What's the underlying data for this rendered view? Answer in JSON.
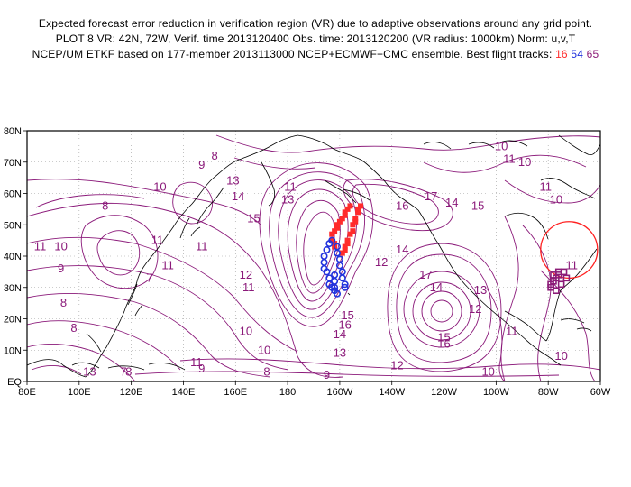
{
  "header": {
    "line1": "Expected forecast error reduction in verification region (VR) due to adaptive observations around any grid point.",
    "line2": "PLOT 8 VR: 42N, 72W, Verif. time 2013120400 Obs. time: 2013120200 (VR radius: 1000km) Norm: u,v,T",
    "line3_prefix": "NCEP/UM ETKF based on 177-member 2013113000 NCEP+ECMWF+CMC ensemble. Best flight tracks:",
    "track_a": "16",
    "track_b": "54",
    "track_c": "65"
  },
  "map": {
    "lon_labels": [
      "80E",
      "100E",
      "120E",
      "140E",
      "160E",
      "180",
      "160W",
      "140W",
      "120W",
      "100W",
      "80W",
      "60W"
    ],
    "lat_labels": [
      "EQ",
      "10N",
      "20N",
      "30N",
      "40N",
      "50N",
      "60N",
      "70N",
      "80N"
    ],
    "contour_labels": [
      {
        "text": "8",
        "lon": 152,
        "lat": 72
      },
      {
        "text": "9",
        "lon": 147,
        "lat": 69
      },
      {
        "text": "13",
        "lon": 159,
        "lat": 64
      },
      {
        "text": "14",
        "lon": 161,
        "lat": 59
      },
      {
        "text": "15",
        "lon": 167,
        "lat": 52
      },
      {
        "text": "11",
        "lon": 181,
        "lat": 62
      },
      {
        "text": "13",
        "lon": 180,
        "lat": 58
      },
      {
        "text": "16",
        "lon": -136,
        "lat": 56
      },
      {
        "text": "17",
        "lon": -125,
        "lat": 59
      },
      {
        "text": "14",
        "lon": -117,
        "lat": 57
      },
      {
        "text": "15",
        "lon": -107,
        "lat": 56
      },
      {
        "text": "10",
        "lon": -98,
        "lat": 75
      },
      {
        "text": "10",
        "lon": -89,
        "lat": 70
      },
      {
        "text": "11",
        "lon": -95,
        "lat": 71
      },
      {
        "text": "11",
        "lon": -81,
        "lat": 62
      },
      {
        "text": "10",
        "lon": -77,
        "lat": 58
      },
      {
        "text": "10",
        "lon": 131,
        "lat": 62
      },
      {
        "text": "8",
        "lon": 110,
        "lat": 56
      },
      {
        "text": "11",
        "lon": 85,
        "lat": 43
      },
      {
        "text": "10",
        "lon": 93,
        "lat": 43
      },
      {
        "text": "11",
        "lon": 130,
        "lat": 45
      },
      {
        "text": "11",
        "lon": 147,
        "lat": 43
      },
      {
        "text": "11",
        "lon": 134,
        "lat": 37
      },
      {
        "text": "9",
        "lon": 93,
        "lat": 36
      },
      {
        "text": "7",
        "lon": 127,
        "lat": 33
      },
      {
        "text": "8",
        "lon": 94,
        "lat": 25
      },
      {
        "text": "8",
        "lon": 98,
        "lat": 17
      },
      {
        "text": "12",
        "lon": 164,
        "lat": 34
      },
      {
        "text": "11",
        "lon": 165,
        "lat": 30
      },
      {
        "text": "12",
        "lon": -144,
        "lat": 38
      },
      {
        "text": "14",
        "lon": -136,
        "lat": 42
      },
      {
        "text": "17",
        "lon": -127,
        "lat": 34
      },
      {
        "text": "14",
        "lon": -123,
        "lat": 30
      },
      {
        "text": "13",
        "lon": -106,
        "lat": 29
      },
      {
        "text": "12",
        "lon": -108,
        "lat": 23
      },
      {
        "text": "15",
        "lon": -157,
        "lat": 21
      },
      {
        "text": "14",
        "lon": -160,
        "lat": 15
      },
      {
        "text": "16",
        "lon": -158,
        "lat": 18
      },
      {
        "text": "10",
        "lon": 164,
        "lat": 16
      },
      {
        "text": "10",
        "lon": 171,
        "lat": 10
      },
      {
        "text": "13",
        "lon": -160,
        "lat": 9
      },
      {
        "text": "11",
        "lon": 145,
        "lat": 6
      },
      {
        "text": "9",
        "lon": 147,
        "lat": 4
      },
      {
        "text": "8",
        "lon": 172,
        "lat": 3
      },
      {
        "text": "9",
        "lon": -165,
        "lat": 2
      },
      {
        "text": "12",
        "lon": -138,
        "lat": 5
      },
      {
        "text": "10",
        "lon": -103,
        "lat": 3
      },
      {
        "text": "16",
        "lon": -120,
        "lat": 12
      },
      {
        "text": "15",
        "lon": -120,
        "lat": 14
      },
      {
        "text": "11",
        "lon": -94,
        "lat": 16
      },
      {
        "text": "10",
        "lon": -75,
        "lat": 8
      },
      {
        "text": "11",
        "lon": -71,
        "lat": 37
      },
      {
        "text": "13",
        "lon": 104,
        "lat": 3
      },
      {
        "text": "7",
        "lon": 117,
        "lat": 3
      },
      {
        "text": "8",
        "lon": 119,
        "lat": 3
      }
    ],
    "verification_region": {
      "lon": -72,
      "lat": 42,
      "radius_km": 1000
    }
  },
  "colors": {
    "contour": "#8b1a7a",
    "coast": "#000000",
    "vr_circle": "#ff2020",
    "track_a": "#ff2b2b",
    "track_b": "#2233dd",
    "track_c": "#8c1c78"
  },
  "tracks": {
    "track_a": [
      [
        -159,
        41
      ],
      [
        -158,
        42
      ],
      [
        -158,
        43
      ],
      [
        -157,
        44
      ],
      [
        -157,
        45
      ],
      [
        -156,
        47
      ],
      [
        -155,
        48
      ],
      [
        -155,
        50
      ],
      [
        -154,
        51
      ],
      [
        -154,
        52
      ],
      [
        -153,
        54
      ],
      [
        -153,
        55
      ],
      [
        -152,
        56
      ],
      [
        -162,
        43
      ],
      [
        -162,
        44
      ],
      [
        -163,
        45
      ],
      [
        -163,
        47
      ],
      [
        -162,
        48
      ],
      [
        -161,
        49
      ],
      [
        -161,
        50
      ],
      [
        -160,
        51
      ],
      [
        -159,
        52
      ],
      [
        -158,
        53
      ],
      [
        -158,
        54
      ],
      [
        -157,
        55
      ],
      [
        -156,
        56
      ]
    ],
    "track_b": [
      [
        -163,
        45
      ],
      [
        -164,
        44
      ],
      [
        -165,
        42
      ],
      [
        -166,
        40
      ],
      [
        -166,
        38
      ],
      [
        -166,
        36
      ],
      [
        -165,
        35
      ],
      [
        -164,
        33
      ],
      [
        -164,
        31
      ],
      [
        -163,
        30
      ],
      [
        -162,
        29
      ],
      [
        -161,
        28
      ],
      [
        -161,
        43
      ],
      [
        -161,
        41
      ],
      [
        -160,
        39
      ],
      [
        -160,
        37
      ],
      [
        -159,
        35
      ],
      [
        -159,
        33
      ],
      [
        -158,
        31
      ],
      [
        -158,
        30
      ],
      [
        -162,
        30
      ],
      [
        -162,
        32
      ],
      [
        -162,
        34
      ]
    ],
    "track_c": [
      [
        -74,
        35
      ],
      [
        -76,
        34
      ],
      [
        -77,
        33
      ],
      [
        -78,
        32
      ],
      [
        -79,
        31
      ],
      [
        -79,
        30
      ],
      [
        -77,
        29
      ],
      [
        -75,
        31
      ],
      [
        -73,
        33
      ],
      [
        -76,
        35
      ],
      [
        -78,
        34
      ]
    ]
  }
}
